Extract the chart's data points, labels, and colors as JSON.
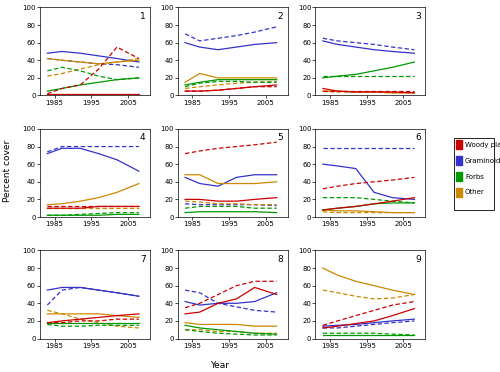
{
  "years": [
    1983,
    1987,
    1992,
    1997,
    2002,
    2008
  ],
  "colors": {
    "woody": "#cc0000",
    "gram": "#3333cc",
    "forbs": "#009900",
    "other": "#cc8800"
  },
  "sites": {
    "1": {
      "woody_solid": [
        2,
        2,
        2,
        2,
        2,
        2
      ],
      "woody_dash": [
        2,
        8,
        12,
        30,
        55,
        42
      ],
      "gram_solid": [
        48,
        50,
        48,
        45,
        42,
        38
      ],
      "gram_dash": [
        42,
        40,
        38,
        36,
        35,
        32
      ],
      "forbs_solid": [
        5,
        8,
        12,
        15,
        18,
        20
      ],
      "forbs_dash": [
        28,
        32,
        28,
        22,
        18,
        20
      ],
      "other_solid": [
        42,
        40,
        38,
        36,
        38,
        40
      ],
      "other_dash": [
        22,
        25,
        30,
        35,
        38,
        42
      ]
    },
    "2": {
      "woody_solid": [
        5,
        5,
        6,
        8,
        10,
        12
      ],
      "woody_dash": [
        5,
        5,
        6,
        8,
        10,
        10
      ],
      "gram_solid": [
        60,
        55,
        52,
        55,
        58,
        60
      ],
      "gram_dash": [
        70,
        62,
        65,
        68,
        72,
        78
      ],
      "forbs_solid": [
        12,
        15,
        18,
        18,
        18,
        18
      ],
      "forbs_dash": [
        10,
        14,
        16,
        16,
        15,
        15
      ],
      "other_solid": [
        15,
        25,
        20,
        20,
        20,
        20
      ],
      "other_dash": [
        8,
        10,
        12,
        14,
        15,
        16
      ]
    },
    "3": {
      "woody_solid": [
        8,
        5,
        4,
        4,
        4,
        3
      ],
      "woody_dash": [
        5,
        5,
        5,
        5,
        5,
        5
      ],
      "gram_solid": [
        62,
        58,
        55,
        52,
        50,
        48
      ],
      "gram_dash": [
        65,
        62,
        60,
        58,
        55,
        52
      ],
      "forbs_solid": [
        20,
        22,
        24,
        28,
        32,
        38
      ],
      "forbs_dash": [
        22,
        22,
        22,
        22,
        22,
        22
      ],
      "other_solid": [
        5,
        5,
        4,
        4,
        3,
        3
      ],
      "other_dash": [
        5,
        4,
        4,
        4,
        3,
        3
      ]
    },
    "4": {
      "woody_solid": [
        10,
        10,
        10,
        12,
        12,
        12
      ],
      "woody_dash": [
        12,
        12,
        12,
        12,
        12,
        12
      ],
      "gram_solid": [
        72,
        78,
        78,
        72,
        65,
        52
      ],
      "gram_dash": [
        74,
        80,
        80,
        80,
        80,
        80
      ],
      "forbs_solid": [
        2,
        2,
        2,
        2,
        3,
        3
      ],
      "forbs_dash": [
        2,
        2,
        3,
        4,
        5,
        5
      ],
      "other_solid": [
        14,
        15,
        18,
        22,
        28,
        38
      ],
      "other_dash": [
        10,
        10,
        10,
        10,
        10,
        10
      ]
    },
    "5": {
      "woody_solid": [
        20,
        20,
        18,
        18,
        20,
        22
      ],
      "woody_dash": [
        72,
        75,
        78,
        80,
        82,
        85
      ],
      "gram_solid": [
        45,
        38,
        35,
        45,
        48,
        48
      ],
      "gram_dash": [
        15,
        14,
        14,
        14,
        14,
        13
      ],
      "forbs_solid": [
        5,
        6,
        6,
        6,
        6,
        5
      ],
      "forbs_dash": [
        10,
        12,
        12,
        12,
        10,
        10
      ],
      "other_solid": [
        48,
        48,
        38,
        38,
        38,
        40
      ],
      "other_dash": [
        18,
        17,
        15,
        15,
        14,
        14
      ]
    },
    "6": {
      "woody_solid": [
        8,
        10,
        12,
        15,
        18,
        22
      ],
      "woody_dash": [
        32,
        35,
        38,
        40,
        42,
        45
      ],
      "gram_solid": [
        60,
        58,
        55,
        28,
        22,
        20
      ],
      "gram_dash": [
        78,
        78,
        78,
        78,
        78,
        78
      ],
      "forbs_solid": [
        8,
        10,
        12,
        15,
        16,
        16
      ],
      "forbs_dash": [
        22,
        22,
        22,
        20,
        18,
        16
      ],
      "other_solid": [
        8,
        7,
        7,
        6,
        5,
        5
      ],
      "other_dash": [
        6,
        5,
        5,
        5,
        5,
        5
      ]
    },
    "7": {
      "woody_solid": [
        18,
        20,
        22,
        24,
        26,
        28
      ],
      "woody_dash": [
        18,
        18,
        20,
        20,
        22,
        22
      ],
      "gram_solid": [
        55,
        58,
        58,
        55,
        52,
        48
      ],
      "gram_dash": [
        38,
        55,
        58,
        55,
        52,
        48
      ],
      "forbs_solid": [
        18,
        18,
        18,
        18,
        18,
        18
      ],
      "forbs_dash": [
        16,
        14,
        14,
        15,
        15,
        15
      ],
      "other_solid": [
        28,
        28,
        28,
        28,
        26,
        24
      ],
      "other_dash": [
        32,
        28,
        22,
        18,
        14,
        12
      ]
    },
    "8": {
      "woody_solid": [
        28,
        30,
        40,
        45,
        58,
        50
      ],
      "woody_dash": [
        35,
        40,
        50,
        60,
        65,
        65
      ],
      "gram_solid": [
        42,
        38,
        40,
        40,
        42,
        52
      ],
      "gram_dash": [
        55,
        52,
        40,
        36,
        32,
        30
      ],
      "forbs_solid": [
        15,
        12,
        10,
        8,
        6,
        5
      ],
      "forbs_dash": [
        10,
        8,
        6,
        5,
        4,
        4
      ],
      "other_solid": [
        18,
        16,
        16,
        16,
        14,
        14
      ],
      "other_dash": [
        10,
        10,
        8,
        8,
        6,
        6
      ]
    },
    "9": {
      "woody_solid": [
        12,
        14,
        17,
        20,
        26,
        34
      ],
      "woody_dash": [
        15,
        20,
        26,
        32,
        38,
        42
      ],
      "gram_solid": [
        14,
        15,
        16,
        18,
        20,
        22
      ],
      "gram_dash": [
        12,
        12,
        14,
        16,
        18,
        20
      ],
      "forbs_solid": [
        4,
        4,
        4,
        4,
        4,
        4
      ],
      "forbs_dash": [
        6,
        6,
        6,
        6,
        5,
        4
      ],
      "other_solid": [
        80,
        72,
        65,
        60,
        55,
        50
      ],
      "other_dash": [
        55,
        52,
        48,
        45,
        46,
        50
      ]
    }
  },
  "ylim": [
    0,
    100
  ],
  "yticks": [
    0,
    20,
    40,
    60,
    80,
    100
  ],
  "xticks": [
    1985,
    1995,
    2005
  ],
  "ylabel": "Percent cover",
  "xlabel": "Year",
  "legend_labels": [
    "Woody plants",
    "Graminoids",
    "Forbs",
    "Other"
  ]
}
